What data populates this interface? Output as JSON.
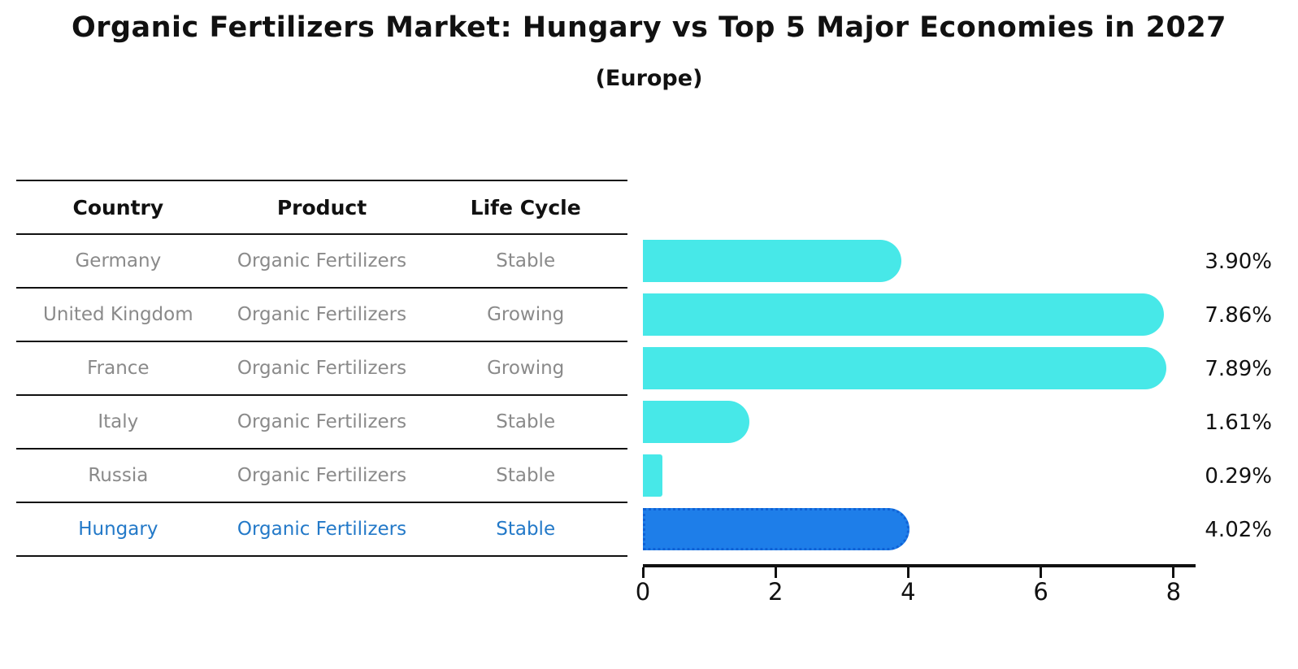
{
  "title": "Organic Fertilizers Market: Hungary vs Top 5 Major Economies in 2027",
  "subtitle": "(Europe)",
  "table": {
    "headers": [
      "Country",
      "Product",
      "Life Cycle"
    ],
    "rows": [
      {
        "country": "Germany",
        "product": "Organic Fertilizers",
        "life_cycle": "Stable",
        "highlight": false
      },
      {
        "country": "United Kingdom",
        "product": "Organic Fertilizers",
        "life_cycle": "Growing",
        "highlight": false
      },
      {
        "country": "France",
        "product": "Organic Fertilizers",
        "life_cycle": "Growing",
        "highlight": false
      },
      {
        "country": "Italy",
        "product": "Organic Fertilizers",
        "life_cycle": "Stable",
        "highlight": false
      },
      {
        "country": "Russia",
        "product": "Organic Fertilizers",
        "life_cycle": "Stable",
        "highlight": false
      },
      {
        "country": "Hungary",
        "product": "Organic Fertilizers",
        "life_cycle": "Stable",
        "highlight": true
      }
    ]
  },
  "chart_data": {
    "type": "bar",
    "orientation": "horizontal",
    "title": "Organic Fertilizers Market: Hungary vs Top 5 Major Economies in 2027",
    "subtitle": "(Europe)",
    "categories": [
      "Germany",
      "United Kingdom",
      "France",
      "Italy",
      "Russia",
      "Hungary"
    ],
    "values": [
      3.9,
      7.86,
      7.89,
      1.61,
      0.29,
      4.02
    ],
    "value_labels": [
      "3.90%",
      "7.86%",
      "7.89%",
      "1.61%",
      "0.29%",
      "4.02%"
    ],
    "unit": "percent (CAGR)",
    "xticks": [
      0,
      2,
      4,
      6,
      8
    ],
    "xlim": [
      0,
      8.3
    ],
    "grid": false,
    "legend": false,
    "highlight_index": 5,
    "bar_color": "#47E8E8",
    "highlight_bar_color": "#1E7EE9",
    "highlight_edge_color": "#1062D6",
    "highlight_text_color": "#2379C8",
    "row_text_color": "#8a8a8a",
    "line_color": "#111111"
  }
}
